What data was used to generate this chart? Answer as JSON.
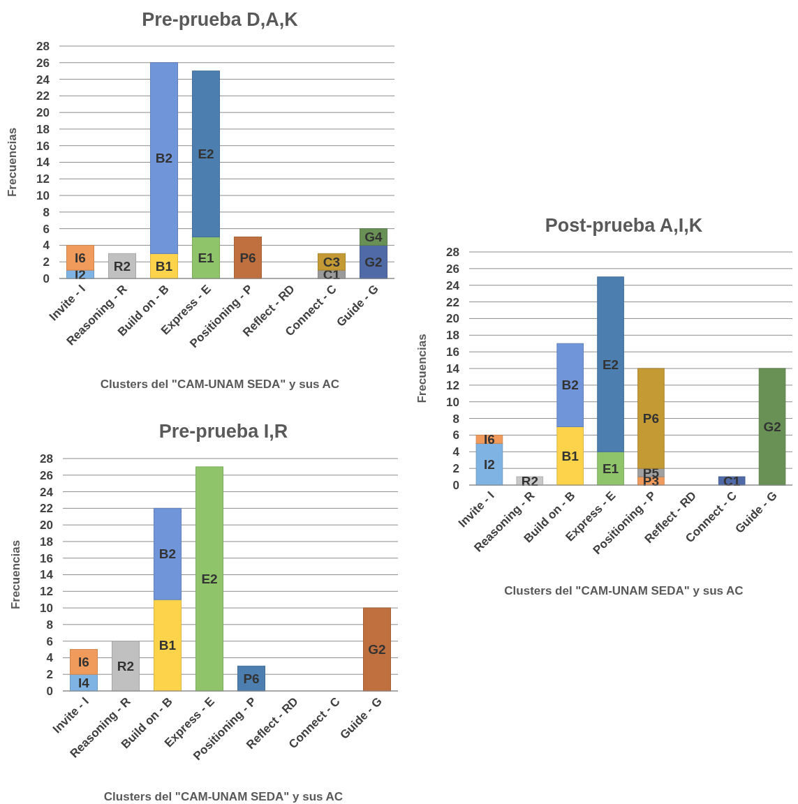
{
  "chart_data": [
    {
      "type": "bar",
      "title": "Pre-prueba D,A,K",
      "xlabel": "Clusters del \"CAM-UNAM SEDA\" y sus AC",
      "ylabel": "Frecuencias",
      "categories": [
        "Invite - I",
        "Reasoning - R",
        "Build on - B",
        "Express - E",
        "Positioning - P",
        "Reflect - RD",
        "Connect - C",
        "Guide - G"
      ],
      "stacked": true,
      "grid": "y",
      "ylim": [
        0,
        28
      ],
      "yticks": [
        0,
        2,
        4,
        6,
        8,
        10,
        12,
        14,
        16,
        18,
        20,
        22,
        24,
        26,
        28
      ],
      "series": [
        {
          "values": [
            1,
            3,
            3,
            5,
            5,
            null,
            1,
            4
          ],
          "colors": [
            "#7fb3e3",
            "#c0c0c0",
            "#fcd34a",
            "#8fc46b",
            "#c0703e",
            null,
            "#9a9a9a",
            "#4f6aa6"
          ],
          "value_labels": [
            "I2",
            "R2",
            "B1",
            "E1",
            "P6",
            null,
            "C1",
            "G2"
          ]
        },
        {
          "values": [
            3,
            null,
            23,
            20,
            null,
            null,
            2,
            2
          ],
          "colors": [
            "#f09b5b",
            null,
            "#7095d8",
            "#4c7fb0",
            null,
            null,
            "#c49a35",
            "#6a9155"
          ],
          "value_labels": [
            "I6",
            null,
            "B2",
            "E2",
            null,
            null,
            "C3",
            "G4"
          ]
        }
      ]
    },
    {
      "type": "bar",
      "title": "Post-prueba A,I,K",
      "xlabel": "Clusters del \"CAM-UNAM SEDA\" y sus AC",
      "ylabel": "Frecuencias",
      "categories": [
        "Invite - I",
        "Reasoning - R",
        "Build on - B",
        "Express - E",
        "Positioning - P",
        "Reflect - RD",
        "Connect - C",
        "Guide - G"
      ],
      "stacked": true,
      "grid": "y",
      "ylim": [
        0,
        28
      ],
      "yticks": [
        0,
        2,
        4,
        6,
        8,
        10,
        12,
        14,
        16,
        18,
        20,
        22,
        24,
        26,
        28
      ],
      "series": [
        {
          "values": [
            5,
            1,
            7,
            4,
            1,
            null,
            1,
            14
          ],
          "colors": [
            "#7fb3e3",
            "#c8c8c8",
            "#fcd34a",
            "#8fc46b",
            "#f09b5b",
            null,
            "#4f6aa6",
            "#6a9155"
          ],
          "value_labels": [
            "I2",
            "R2",
            "B1",
            "E1",
            "P3",
            null,
            "C1",
            "G2"
          ]
        },
        {
          "values": [
            1,
            null,
            10,
            21,
            1,
            null,
            null,
            null
          ],
          "colors": [
            "#f09b5b",
            null,
            "#7095d8",
            "#4c7fb0",
            "#a0a0a0",
            null,
            null,
            null
          ],
          "value_labels": [
            "I6",
            null,
            "B2",
            "E2",
            "P5",
            null,
            null,
            null
          ]
        },
        {
          "values": [
            null,
            null,
            null,
            null,
            12,
            null,
            null,
            null
          ],
          "colors": [
            null,
            null,
            null,
            null,
            "#c49a35",
            null,
            null,
            null
          ],
          "value_labels": [
            null,
            null,
            null,
            null,
            "P6",
            null,
            null,
            null
          ]
        }
      ]
    },
    {
      "type": "bar",
      "title": "Pre-prueba I,R",
      "xlabel": "Clusters del \"CAM-UNAM SEDA\" y sus AC",
      "ylabel": "Frecuencias",
      "categories": [
        "Invite - I",
        "Reasoning - R",
        "Build on - B",
        "Express - E",
        "Positioning - P",
        "Reflect - RD",
        "Connect - C",
        "Guide - G"
      ],
      "stacked": true,
      "grid": "y",
      "ylim": [
        0,
        28
      ],
      "yticks": [
        0,
        2,
        4,
        6,
        8,
        10,
        12,
        14,
        16,
        18,
        20,
        22,
        24,
        26,
        28
      ],
      "series": [
        {
          "values": [
            2,
            6,
            11,
            27,
            3,
            null,
            null,
            10
          ],
          "colors": [
            "#7fb3e3",
            "#c0c0c0",
            "#fcd34a",
            "#8fc46b",
            "#4c7fb0",
            null,
            null,
            "#c0703e"
          ],
          "value_labels": [
            "I4",
            "R2",
            "B1",
            "E2",
            "P6",
            null,
            null,
            "G2"
          ]
        },
        {
          "values": [
            3,
            null,
            11,
            null,
            null,
            null,
            null,
            null
          ],
          "colors": [
            "#f09b5b",
            null,
            "#7095d8",
            null,
            null,
            null,
            null,
            null
          ],
          "value_labels": [
            "I6",
            null,
            "B2",
            null,
            null,
            null,
            null,
            null
          ]
        }
      ]
    }
  ]
}
